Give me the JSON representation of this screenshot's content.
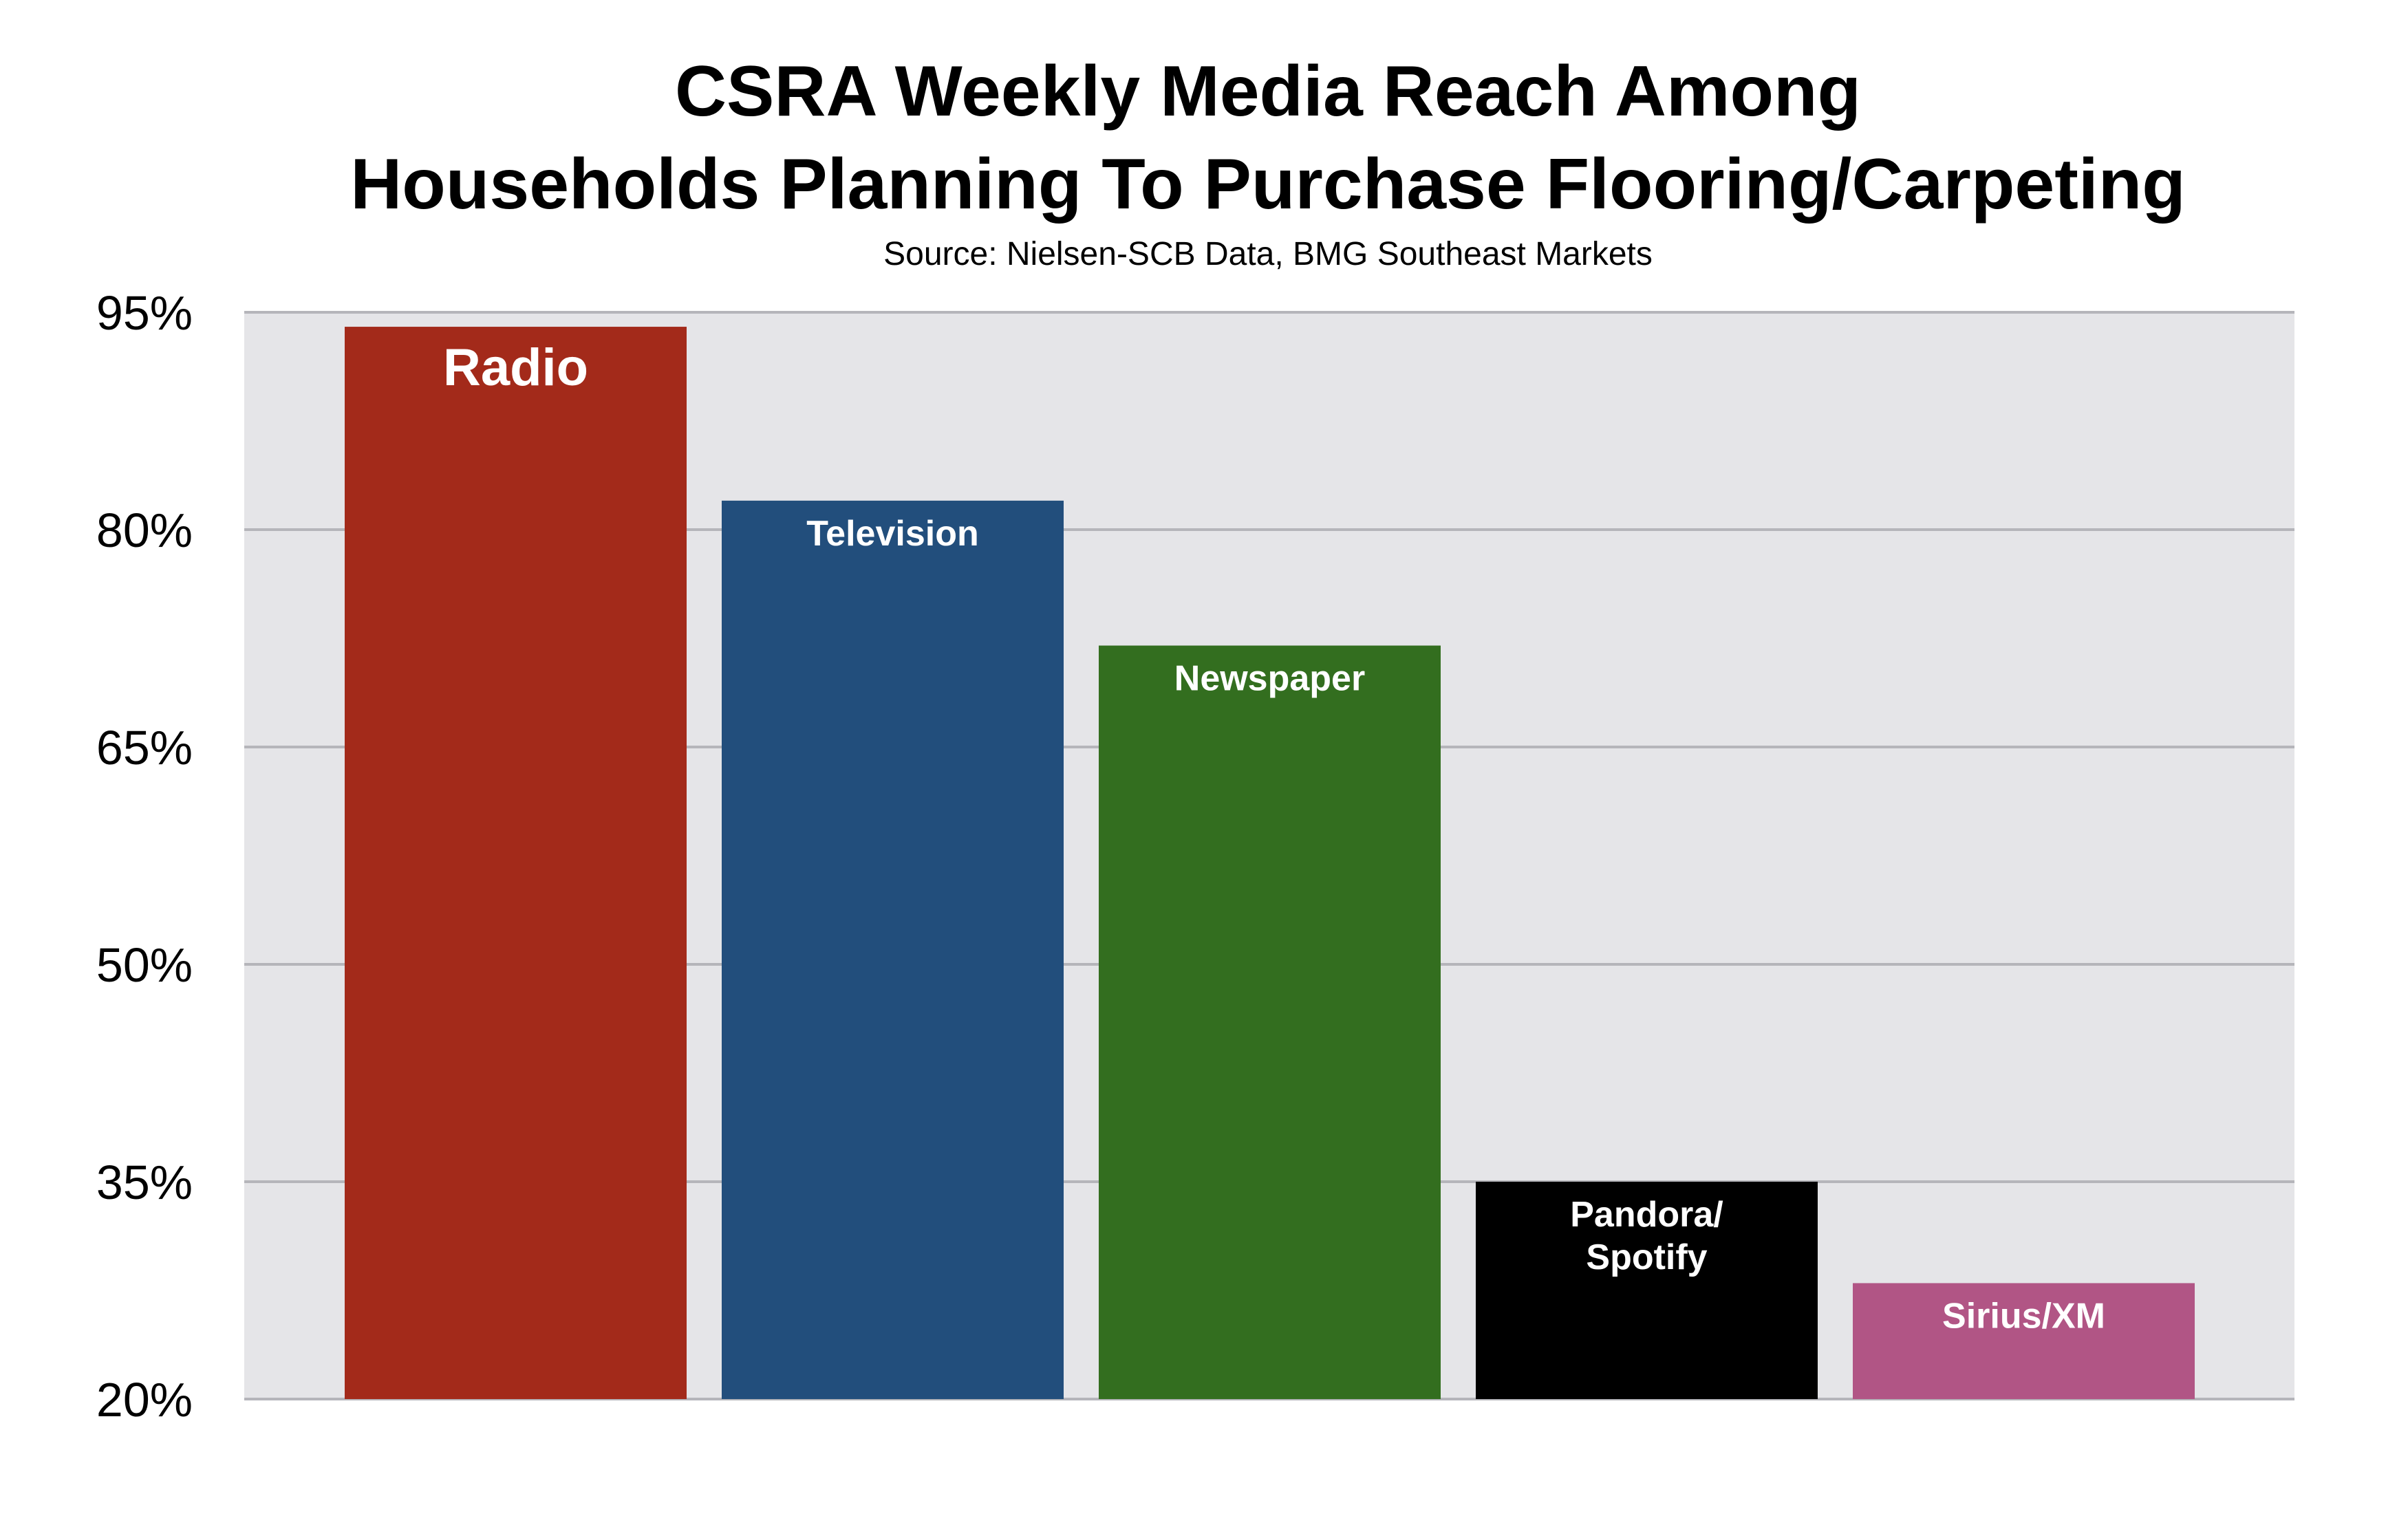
{
  "chart_data": {
    "type": "bar",
    "title_lines": [
      "CSRA Weekly Media Reach Among",
      "Households Planning To Purchase  Flooring/Carpeting"
    ],
    "subtitle": "Source: Nielsen-SCB Data, BMG Southeast Markets",
    "categories": [
      "Radio",
      "Television",
      "Newspaper",
      "Pandora/ Spotify",
      "Sirius/XM"
    ],
    "bar_label_lines": [
      [
        "Radio"
      ],
      [
        "Television"
      ],
      [
        "Newspaper"
      ],
      [
        "Pandora/",
        "Spotify"
      ],
      [
        "Sirius/XM"
      ]
    ],
    "values": [
      94,
      82,
      72,
      35,
      28
    ],
    "colors": [
      "#A32A1A",
      "#224E7C",
      "#336E1F",
      "#000000",
      "#B15585"
    ],
    "ylim": [
      20,
      95
    ],
    "yticks": [
      20,
      35,
      50,
      65,
      80,
      95
    ],
    "ytick_labels": [
      "20%",
      "35%",
      "50%",
      "65%",
      "80%",
      "95%"
    ],
    "xlabel": "",
    "ylabel": "",
    "grid": true,
    "plot_background": "#E5E5E8",
    "gridline_color": "#B5B5BA",
    "legend": "none"
  }
}
